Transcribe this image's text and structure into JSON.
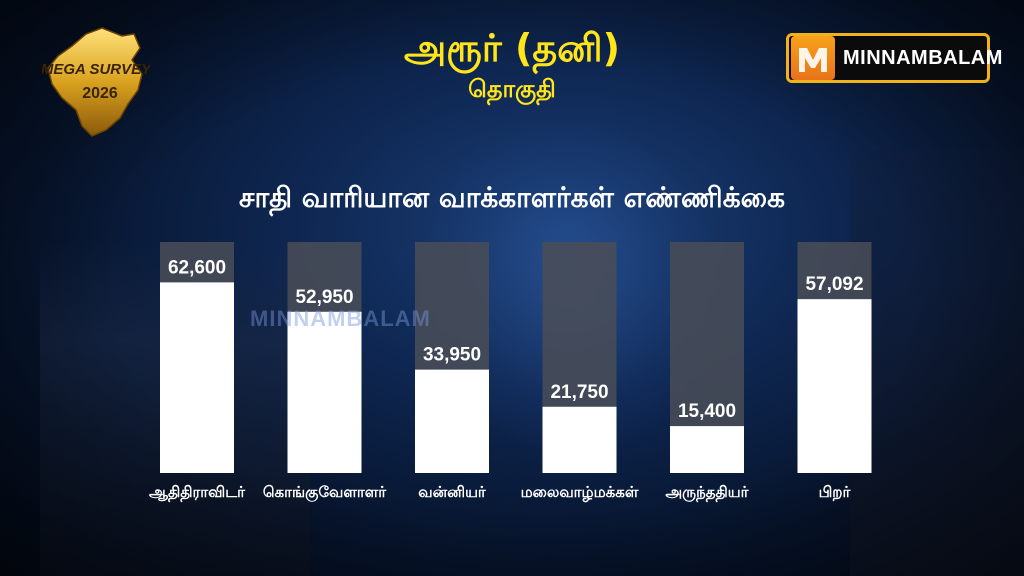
{
  "header": {
    "title": "அரூர் (தனி)",
    "subtitle": "தொகுதி"
  },
  "badge": {
    "line1": "MEGA SURVEY",
    "line2": "2026"
  },
  "brand": {
    "name": "MINNAMBALAM",
    "accent_color": "#f2b21a"
  },
  "watermark": "MINNAMBALAM",
  "chart_data": {
    "type": "bar",
    "title": "சாதி வாரியான வாக்காளர்கள்  எண்ணிக்கை",
    "categories": [
      "ஆதிதிராவிடர்",
      "கொங்குவேளாளர்",
      "வன்னியர்",
      "மலைவாழ்மக்கள்",
      "அருந்ததியர்",
      "பிறர்"
    ],
    "values": [
      62600,
      52950,
      33950,
      21750,
      15400,
      57092
    ],
    "value_labels": [
      "62,600",
      "52,950",
      "33,950",
      "21,750",
      "15,400",
      "57,092"
    ],
    "ylim": [
      0,
      80000
    ],
    "bar_color": "#ffffff",
    "track_color": "#4a4d57",
    "grid": false,
    "legend": "none"
  }
}
